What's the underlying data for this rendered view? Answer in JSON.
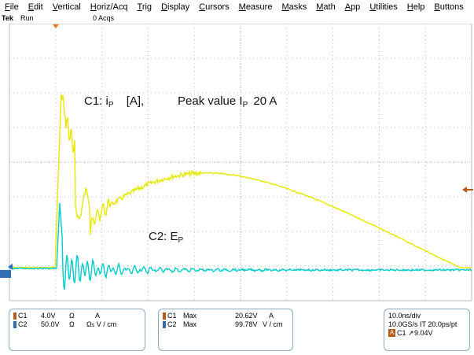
{
  "menu": [
    "File",
    "Edit",
    "Vertical",
    "Horiz/Acq",
    "Trig",
    "Display",
    "Cursors",
    "Measure",
    "Masks",
    "Math",
    "App",
    "Utilities",
    "Help",
    "Buttons"
  ],
  "status": {
    "brand": "Tek",
    "state": "Run",
    "acqs": "0 Acqs"
  },
  "annotations": {
    "c1_prefix": "C1: i",
    "c1_sub": "P",
    "c1_unit": "[A],",
    "peak_prefix": "Peak value I",
    "peak_sub": "P",
    "peak_value": "20 A",
    "c2_prefix": "C2: E",
    "c2_sub": "P"
  },
  "colors": {
    "c1": "#e8e800",
    "c2": "#00cccc",
    "grid": "#b8b8b8",
    "c1_badge": "#b85c1a",
    "c2_badge": "#2f6db5"
  },
  "channels_panel": {
    "rows": [
      {
        "ch": "C1",
        "scale": "4.0V",
        "coupling": "Ω",
        "unit": "A"
      },
      {
        "ch": "C2",
        "scale": "50.0V",
        "coupling": "Ω",
        "unit_prefix": "Ω",
        "unit_sub": "s",
        "unit": "V / cm"
      }
    ]
  },
  "measure_panel": {
    "rows": [
      {
        "ch": "C1",
        "label": "Max",
        "value": "20.62V",
        "unit": "A"
      },
      {
        "ch": "C2",
        "label": "Max",
        "value": "99.78V",
        "unit": "V / cm"
      }
    ]
  },
  "timebase_panel": {
    "line1": "10.0ns/div",
    "line2": "10.0GS/s IT 20.0ps/pt",
    "trigger_badge": "A",
    "trigger_ch": "C1",
    "trigger_slope": "↗",
    "trigger_level": "9.04V"
  }
}
